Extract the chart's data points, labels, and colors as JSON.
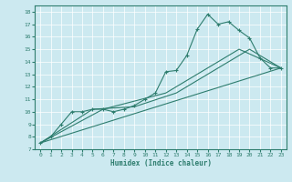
{
  "xlabel": "Humidex (Indice chaleur)",
  "bg_color": "#cce9f0",
  "line_color": "#2e7d6e",
  "grid_color": "#b0d8e0",
  "xlim": [
    -0.5,
    23.5
  ],
  "ylim": [
    7,
    18.5
  ],
  "xticks": [
    0,
    1,
    2,
    3,
    4,
    5,
    6,
    7,
    8,
    9,
    10,
    11,
    12,
    13,
    14,
    15,
    16,
    17,
    18,
    19,
    20,
    21,
    22,
    23
  ],
  "yticks": [
    7,
    8,
    9,
    10,
    11,
    12,
    13,
    14,
    15,
    16,
    17,
    18
  ],
  "line1_x": [
    0,
    1,
    2,
    3,
    4,
    5,
    6,
    7,
    8,
    9,
    10,
    11,
    12,
    13,
    14,
    15,
    16,
    17,
    18,
    19,
    20,
    21,
    22,
    23
  ],
  "line1_y": [
    7.5,
    8.0,
    9.0,
    10.0,
    10.0,
    10.2,
    10.2,
    10.0,
    10.2,
    10.5,
    11.0,
    11.5,
    13.2,
    13.3,
    14.5,
    16.6,
    17.8,
    17.0,
    17.2,
    16.5,
    15.9,
    14.3,
    13.5,
    13.5
  ],
  "line2_x": [
    0,
    23
  ],
  "line2_y": [
    7.5,
    13.5
  ],
  "line3_x": [
    0,
    6,
    12,
    19,
    23
  ],
  "line3_y": [
    7.5,
    10.2,
    11.5,
    15.0,
    13.5
  ],
  "line4_x": [
    0,
    5,
    9,
    13,
    20,
    23
  ],
  "line4_y": [
    7.5,
    10.2,
    10.4,
    11.5,
    15.0,
    13.5
  ]
}
